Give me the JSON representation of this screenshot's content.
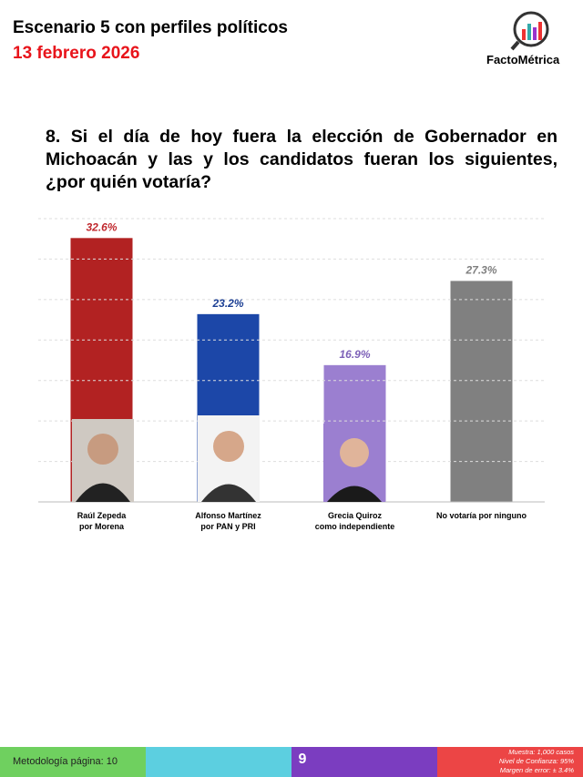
{
  "header": {
    "title": "Escenario 5 con perfiles políticos",
    "date": "13 febrero 2026",
    "logo": "FactoMétrica"
  },
  "question": "8. Si el día de hoy fuera la elección de Gobernador en Michoacán y las y los candidatos fueran los siguientes, ¿por quién votaría?",
  "chart_data": {
    "type": "bar",
    "categories": [
      "Raúl Zepeda\npor Morena",
      "Alfonso Martínez\npor PAN y PRI",
      "Grecia Quiroz\ncomo independiente",
      "No votaría por ninguno"
    ],
    "values": [
      32.6,
      23.2,
      16.9,
      27.3
    ],
    "value_labels": [
      "32.6%",
      "23.2%",
      "16.9%",
      "27.3%"
    ],
    "colors": [
      "#b22222",
      "#1c47a8",
      "#9b7fd0",
      "#808080"
    ],
    "label_colors": [
      "#c0282d",
      "#1c3f94",
      "#7e62b8",
      "#808080"
    ],
    "ylim": [
      0,
      35
    ],
    "yticks": [
      0,
      5,
      10,
      15,
      20,
      25,
      30,
      35
    ],
    "grid": true
  },
  "footer": {
    "methodology": "Metodología página: 10",
    "page": "9",
    "notes": [
      "Muestra:  1,000 casos",
      "Nivel de Confianza: 95%",
      "Margen de error: ± 3.4%"
    ]
  }
}
